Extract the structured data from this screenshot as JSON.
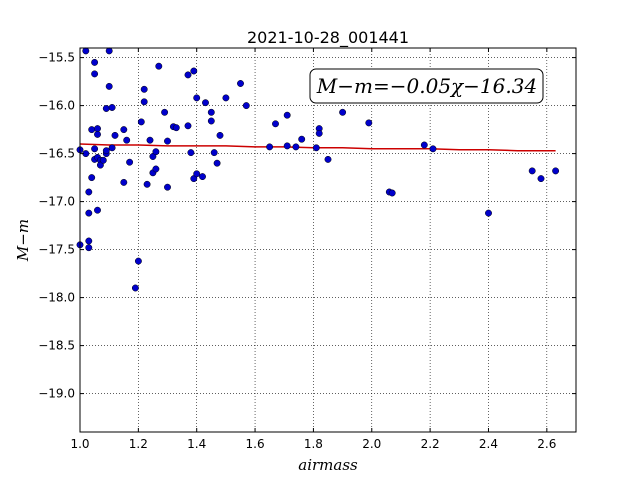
{
  "chart_data": {
    "type": "scatter",
    "title": "2021-10-28_001441",
    "xlabel": "airmass",
    "ylabel": "M−m",
    "annotation": "M−m=−0.05χ−16.34",
    "xlim": [
      1.0,
      2.7
    ],
    "ylim": [
      -19.4,
      -15.4
    ],
    "y_inverted": true,
    "grid": true,
    "x_ticks": [
      "1.0",
      "1.2",
      "1.4",
      "1.6",
      "1.8",
      "2.0",
      "2.2",
      "2.4",
      "2.6"
    ],
    "y_ticks": [
      "−15.5",
      "−16.0",
      "−16.5",
      "−17.0",
      "−17.5",
      "−18.0",
      "−18.5",
      "−19.0"
    ],
    "point_color": "#0000cc",
    "fit_color": "#cc0000",
    "points": [
      [
        1.0,
        -16.46
      ],
      [
        1.0,
        -17.45
      ],
      [
        1.02,
        -15.43
      ],
      [
        1.02,
        -16.5
      ],
      [
        1.03,
        -16.9
      ],
      [
        1.03,
        -17.12
      ],
      [
        1.03,
        -17.41
      ],
      [
        1.03,
        -17.48
      ],
      [
        1.04,
        -16.75
      ],
      [
        1.04,
        -16.25
      ],
      [
        1.05,
        -15.67
      ],
      [
        1.05,
        -15.55
      ],
      [
        1.05,
        -16.45
      ],
      [
        1.05,
        -16.56
      ],
      [
        1.06,
        -16.24
      ],
      [
        1.06,
        -16.3
      ],
      [
        1.06,
        -16.54
      ],
      [
        1.06,
        -17.09
      ],
      [
        1.07,
        -16.57
      ],
      [
        1.07,
        -16.62
      ],
      [
        1.08,
        -16.57
      ],
      [
        1.09,
        -16.5
      ],
      [
        1.09,
        -16.47
      ],
      [
        1.09,
        -16.03
      ],
      [
        1.1,
        -15.43
      ],
      [
        1.1,
        -15.8
      ],
      [
        1.11,
        -16.02
      ],
      [
        1.11,
        -16.44
      ],
      [
        1.12,
        -16.31
      ],
      [
        1.15,
        -16.25
      ],
      [
        1.15,
        -16.8
      ],
      [
        1.16,
        -16.36
      ],
      [
        1.17,
        -16.59
      ],
      [
        1.19,
        -17.9
      ],
      [
        1.2,
        -17.62
      ],
      [
        1.21,
        -16.17
      ],
      [
        1.22,
        -15.96
      ],
      [
        1.22,
        -15.83
      ],
      [
        1.23,
        -16.82
      ],
      [
        1.24,
        -16.36
      ],
      [
        1.25,
        -16.53
      ],
      [
        1.25,
        -16.7
      ],
      [
        1.26,
        -16.48
      ],
      [
        1.26,
        -16.66
      ],
      [
        1.27,
        -15.59
      ],
      [
        1.29,
        -16.07
      ],
      [
        1.3,
        -16.37
      ],
      [
        1.3,
        -16.85
      ],
      [
        1.32,
        -16.22
      ],
      [
        1.33,
        -16.23
      ],
      [
        1.37,
        -16.21
      ],
      [
        1.37,
        -15.68
      ],
      [
        1.38,
        -16.49
      ],
      [
        1.39,
        -16.76
      ],
      [
        1.39,
        -15.64
      ],
      [
        1.4,
        -16.71
      ],
      [
        1.4,
        -15.92
      ],
      [
        1.42,
        -16.74
      ],
      [
        1.43,
        -15.97
      ],
      [
        1.45,
        -16.07
      ],
      [
        1.45,
        -16.16
      ],
      [
        1.46,
        -16.49
      ],
      [
        1.47,
        -16.6
      ],
      [
        1.48,
        -16.31
      ],
      [
        1.5,
        -15.92
      ],
      [
        1.55,
        -15.77
      ],
      [
        1.57,
        -16.0
      ],
      [
        1.65,
        -16.43
      ],
      [
        1.67,
        -16.19
      ],
      [
        1.71,
        -16.42
      ],
      [
        1.71,
        -16.1
      ],
      [
        1.74,
        -16.43
      ],
      [
        1.76,
        -16.35
      ],
      [
        1.81,
        -16.44
      ],
      [
        1.82,
        -16.24
      ],
      [
        1.82,
        -16.29
      ],
      [
        1.85,
        -16.56
      ],
      [
        1.9,
        -16.07
      ],
      [
        1.99,
        -16.18
      ],
      [
        2.06,
        -16.9
      ],
      [
        2.07,
        -16.91
      ],
      [
        2.18,
        -16.41
      ],
      [
        2.21,
        -16.45
      ],
      [
        2.4,
        -17.12
      ],
      [
        2.55,
        -16.68
      ],
      [
        2.58,
        -16.76
      ],
      [
        2.63,
        -16.68
      ]
    ],
    "fit_line": [
      [
        1.0,
        -16.4
      ],
      [
        1.1,
        -16.41
      ],
      [
        1.2,
        -16.41
      ],
      [
        1.3,
        -16.42
      ],
      [
        1.4,
        -16.42
      ],
      [
        1.5,
        -16.42
      ],
      [
        1.6,
        -16.43
      ],
      [
        1.7,
        -16.43
      ],
      [
        1.8,
        -16.44
      ],
      [
        1.9,
        -16.44
      ],
      [
        2.0,
        -16.45
      ],
      [
        2.1,
        -16.45
      ],
      [
        2.2,
        -16.45
      ],
      [
        2.3,
        -16.46
      ],
      [
        2.4,
        -16.46
      ],
      [
        2.5,
        -16.47
      ],
      [
        2.63,
        -16.47
      ]
    ]
  }
}
